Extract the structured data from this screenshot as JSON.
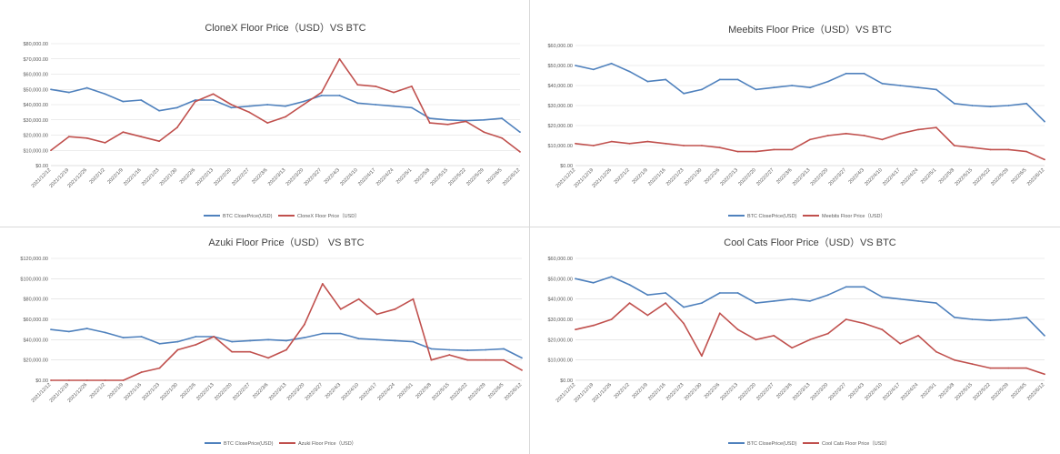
{
  "colors": {
    "btc": "#4f81bd",
    "nft": "#c0504d",
    "grid": "#d9d9d9",
    "axis": "#bfbfbf"
  },
  "dates": [
    "2021/12/12",
    "2021/12/19",
    "2021/12/26",
    "2022/1/2",
    "2022/1/9",
    "2022/1/16",
    "2022/1/23",
    "2022/1/30",
    "2022/2/6",
    "2022/2/13",
    "2022/2/20",
    "2022/2/27",
    "2022/3/6",
    "2022/3/13",
    "2022/3/20",
    "2022/3/27",
    "2022/4/3",
    "2022/4/10",
    "2022/4/17",
    "2022/4/24",
    "2022/5/1",
    "2022/5/8",
    "2022/5/15",
    "2022/5/22",
    "2022/5/29",
    "2022/6/5",
    "2022/6/12"
  ],
  "btc_weekly": [
    50000,
    48000,
    51000,
    47000,
    42000,
    43000,
    36000,
    38000,
    43000,
    43000,
    38000,
    39000,
    40000,
    39000,
    42000,
    46000,
    46000,
    41000,
    40000,
    39000,
    38000,
    31000,
    30000,
    29500,
    30000,
    31000,
    22000
  ],
  "chart_data": [
    {
      "type": "line",
      "title": "CloneX Floor Price（USD）VS BTC",
      "yticks": [
        "$80,000.00",
        "$70,000.00",
        "$60,000.00",
        "$50,000.00",
        "$40,000.00",
        "$30,000.00",
        "$20,000.00",
        "$10,000.00",
        "$0.00"
      ],
      "ylim": [
        0,
        80000
      ],
      "x": "dates",
      "series": [
        {
          "name": "BTC ClosePrice(USD)",
          "values": "btc_weekly"
        },
        {
          "name": "CloneX Floor Price（USD）",
          "values": [
            10000,
            19000,
            18000,
            15000,
            22000,
            19000,
            16000,
            25000,
            42000,
            47000,
            40000,
            35000,
            28000,
            32000,
            40000,
            48000,
            70000,
            53000,
            52000,
            48000,
            52000,
            28000,
            27000,
            29000,
            22000,
            18000,
            9000
          ]
        }
      ],
      "x_tick_labels": [
        "2021/12/12",
        "2021/12/19",
        "2021/12/26",
        "2022/1/2",
        "2022/1/9",
        "2022/1/16",
        "2022/1/23",
        "2022/1/30",
        "2022/2/6",
        "2022/2/13",
        "2022/2/20",
        "2022/2/27",
        "2022/3/6",
        "2022/3/13",
        "2022/3/20",
        "2022/3/27",
        "2022/4/3",
        "2022/4/10",
        "2022/4/17",
        "2022/4/24",
        "2022/5/1",
        "2022/5/8",
        "2022/5/15",
        "2022/5/22",
        "2022/5/29",
        "2022/6/5",
        "2022/6/12"
      ]
    },
    {
      "type": "line",
      "title": "Meebits Floor Price（USD）VS BTC",
      "yticks": [
        "$60,000.00",
        "$50,000.00",
        "$40,000.00",
        "$30,000.00",
        "$20,000.00",
        "$10,000.00",
        "$0.00"
      ],
      "ylim": [
        0,
        60000
      ],
      "x": "dates",
      "series": [
        {
          "name": "BTC ClosePrice(USD)",
          "values": "btc_weekly"
        },
        {
          "name": "Meebits Floor Price（USD）",
          "values": [
            11000,
            10000,
            12000,
            11000,
            12000,
            11000,
            10000,
            10000,
            9000,
            7000,
            7000,
            8000,
            8000,
            13000,
            15000,
            16000,
            15000,
            13000,
            16000,
            18000,
            19000,
            10000,
            9000,
            8000,
            8000,
            7000,
            3000
          ]
        }
      ],
      "x_tick_labels": [
        "2021/12/12",
        "2021/12/19",
        "2021/12/26",
        "2022/1/2",
        "2022/1/9",
        "2022/1/16",
        "2022/1/23",
        "2022/1/30",
        "2022/2/6",
        "2022/2/13",
        "2022/2/20",
        "2022/2/27",
        "2022/3/6",
        "2022/3/13",
        "2022/3/20",
        "2022/3/27",
        "2022/4/3",
        "2022/4/10",
        "2022/4/17",
        "2022/4/24",
        "2022/5/1",
        "2022/5/8",
        "2022/5/15",
        "2022/5/22",
        "2022/5/29",
        "2022/6/5",
        "2022/6/12"
      ]
    },
    {
      "type": "line",
      "title": "Azuki Floor Price（USD） VS BTC",
      "yticks": [
        "$120,000.00",
        "$100,000.00",
        "$80,000.00",
        "$60,000.00",
        "$40,000.00",
        "$20,000.00",
        "$0.00"
      ],
      "ylim": [
        0,
        120000
      ],
      "x": "dates",
      "series": [
        {
          "name": "BTC ClosePrice(USD)",
          "values": "btc_weekly"
        },
        {
          "name": "Azuki Floor Price（USD）",
          "values": [
            0,
            0,
            0,
            0,
            0,
            8000,
            12000,
            30000,
            35000,
            43000,
            28000,
            28000,
            22000,
            30000,
            55000,
            95000,
            70000,
            80000,
            65000,
            70000,
            80000,
            20000,
            25000,
            20000,
            20000,
            20000,
            10000
          ]
        }
      ],
      "x_tick_labels": [
        "2021/12/12",
        "2021/12/19",
        "2021/12/26",
        "2022/1/2",
        "2022/1/9",
        "2022/1/16",
        "2022/1/23",
        "2022/1/30",
        "2022/2/6",
        "2022/2/13",
        "2022/2/20",
        "2022/2/27",
        "2022/3/6",
        "2022/3/13",
        "2022/3/20",
        "2022/3/27",
        "2022/4/3",
        "2022/4/10",
        "2022/4/17",
        "2022/4/24",
        "2022/5/1",
        "2022/5/8",
        "2022/5/15",
        "2022/5/22",
        "2022/5/29",
        "2022/6/5",
        "2022/6/12"
      ]
    },
    {
      "type": "line",
      "title": "Cool Cats Floor Price（USD）VS BTC",
      "yticks": [
        "$60,000.00",
        "$50,000.00",
        "$40,000.00",
        "$30,000.00",
        "$20,000.00",
        "$10,000.00",
        "$0.00"
      ],
      "ylim": [
        0,
        60000
      ],
      "x": "dates",
      "series": [
        {
          "name": "BTC ClosePrice(USD)",
          "values": "btc_weekly"
        },
        {
          "name": "Cool Cats Floor Price（USD）",
          "values": [
            25000,
            27000,
            30000,
            38000,
            32000,
            38000,
            28000,
            12000,
            33000,
            25000,
            20000,
            22000,
            16000,
            20000,
            23000,
            30000,
            28000,
            25000,
            18000,
            22000,
            14000,
            10000,
            8000,
            6000,
            6000,
            6000,
            3000
          ]
        }
      ],
      "x_tick_labels": [
        "2021/12/12",
        "2021/12/19",
        "2021/12/26",
        "2022/1/2",
        "2022/1/9",
        "2022/1/16",
        "2022/1/23",
        "2022/1/30",
        "2022/2/6",
        "2022/2/13",
        "2022/2/20",
        "2022/2/27",
        "2022/3/6",
        "2022/3/13",
        "2022/3/20",
        "2022/3/27",
        "2022/4/3",
        "2022/4/10",
        "2022/4/17",
        "2022/4/24",
        "2022/5/1",
        "2022/5/8",
        "2022/5/15",
        "2022/5/22",
        "2022/5/29",
        "2022/6/5",
        "2022/6/12"
      ]
    }
  ]
}
